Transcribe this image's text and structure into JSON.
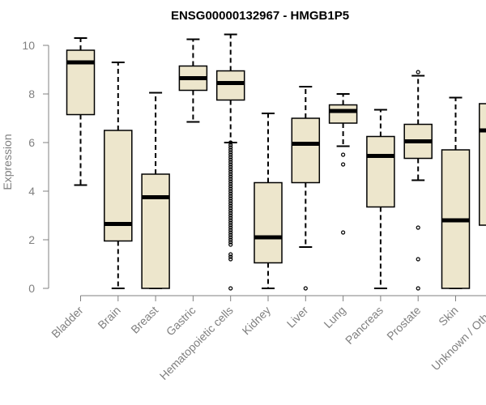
{
  "chart_data": {
    "type": "boxplot",
    "title": "ENSG00000132967 - HMGB1P5",
    "xlabel": "",
    "ylabel": "Expression",
    "ylim": [
      0,
      10
    ],
    "yticks": [
      0,
      2,
      4,
      6,
      8,
      10
    ],
    "categories": [
      "Bladder",
      "Brain",
      "Breast",
      "Gastric",
      "Hematopoietic cells",
      "Kidney",
      "Liver",
      "Lung",
      "Pancreas",
      "Prostate",
      "Skin",
      "Unknown / Other"
    ],
    "boxes": [
      {
        "name": "Bladder",
        "whisker_low": 4.25,
        "q1": 7.15,
        "median": 9.3,
        "q3": 9.8,
        "whisker_high": 10.3,
        "outliers": []
      },
      {
        "name": "Brain",
        "whisker_low": 0,
        "q1": 1.95,
        "median": 2.65,
        "q3": 6.5,
        "whisker_high": 9.3,
        "outliers": []
      },
      {
        "name": "Breast",
        "whisker_low": 0,
        "q1": 0,
        "median": 3.75,
        "q3": 4.7,
        "whisker_high": 8.05,
        "outliers": []
      },
      {
        "name": "Gastric",
        "whisker_low": 6.85,
        "q1": 8.15,
        "median": 8.65,
        "q3": 9.15,
        "whisker_high": 10.25,
        "outliers": []
      },
      {
        "name": "Hematopoietic cells",
        "whisker_low": 6.0,
        "q1": 7.75,
        "median": 8.45,
        "q3": 8.95,
        "whisker_high": 10.45,
        "outliers": [
          6.0,
          5.9,
          5.8,
          5.7,
          5.6,
          5.5,
          5.4,
          5.3,
          5.2,
          5.1,
          5.0,
          4.9,
          4.8,
          4.7,
          4.6,
          4.5,
          4.4,
          4.3,
          4.2,
          4.1,
          4.0,
          3.9,
          3.8,
          3.7,
          3.6,
          3.5,
          3.4,
          3.3,
          3.2,
          3.1,
          3.0,
          2.9,
          2.8,
          2.7,
          2.6,
          2.5,
          2.4,
          2.3,
          2.2,
          2.1,
          2.0,
          1.9,
          1.8,
          1.4,
          1.3,
          1.2,
          0
        ]
      },
      {
        "name": "Kidney",
        "whisker_low": 0,
        "q1": 1.05,
        "median": 2.1,
        "q3": 4.35,
        "whisker_high": 7.2,
        "outliers": []
      },
      {
        "name": "Liver",
        "whisker_low": 1.7,
        "q1": 4.35,
        "median": 5.95,
        "q3": 7.0,
        "whisker_high": 8.3,
        "outliers": [
          0
        ]
      },
      {
        "name": "Lung",
        "whisker_low": 5.85,
        "q1": 6.8,
        "median": 7.3,
        "q3": 7.55,
        "whisker_high": 8.0,
        "outliers": [
          5.5,
          5.1,
          2.3
        ]
      },
      {
        "name": "Pancreas",
        "whisker_low": 0,
        "q1": 3.35,
        "median": 5.45,
        "q3": 6.25,
        "whisker_high": 7.35,
        "outliers": []
      },
      {
        "name": "Prostate",
        "whisker_low": 4.45,
        "q1": 5.35,
        "median": 6.05,
        "q3": 6.75,
        "whisker_high": 8.75,
        "outliers": [
          8.9,
          2.5,
          1.2,
          0
        ]
      },
      {
        "name": "Skin",
        "whisker_low": 0,
        "q1": 0,
        "median": 2.8,
        "q3": 5.7,
        "whisker_high": 7.85,
        "outliers": []
      },
      {
        "name": "Unknown / Other",
        "whisker_low": 0,
        "q1": 2.6,
        "median": 6.5,
        "q3": 7.6,
        "whisker_high": 10.2,
        "outliers": []
      }
    ],
    "colors": {
      "box_fill": "#ede6cc",
      "box_stroke": "#000000",
      "axis": "#808080"
    }
  }
}
